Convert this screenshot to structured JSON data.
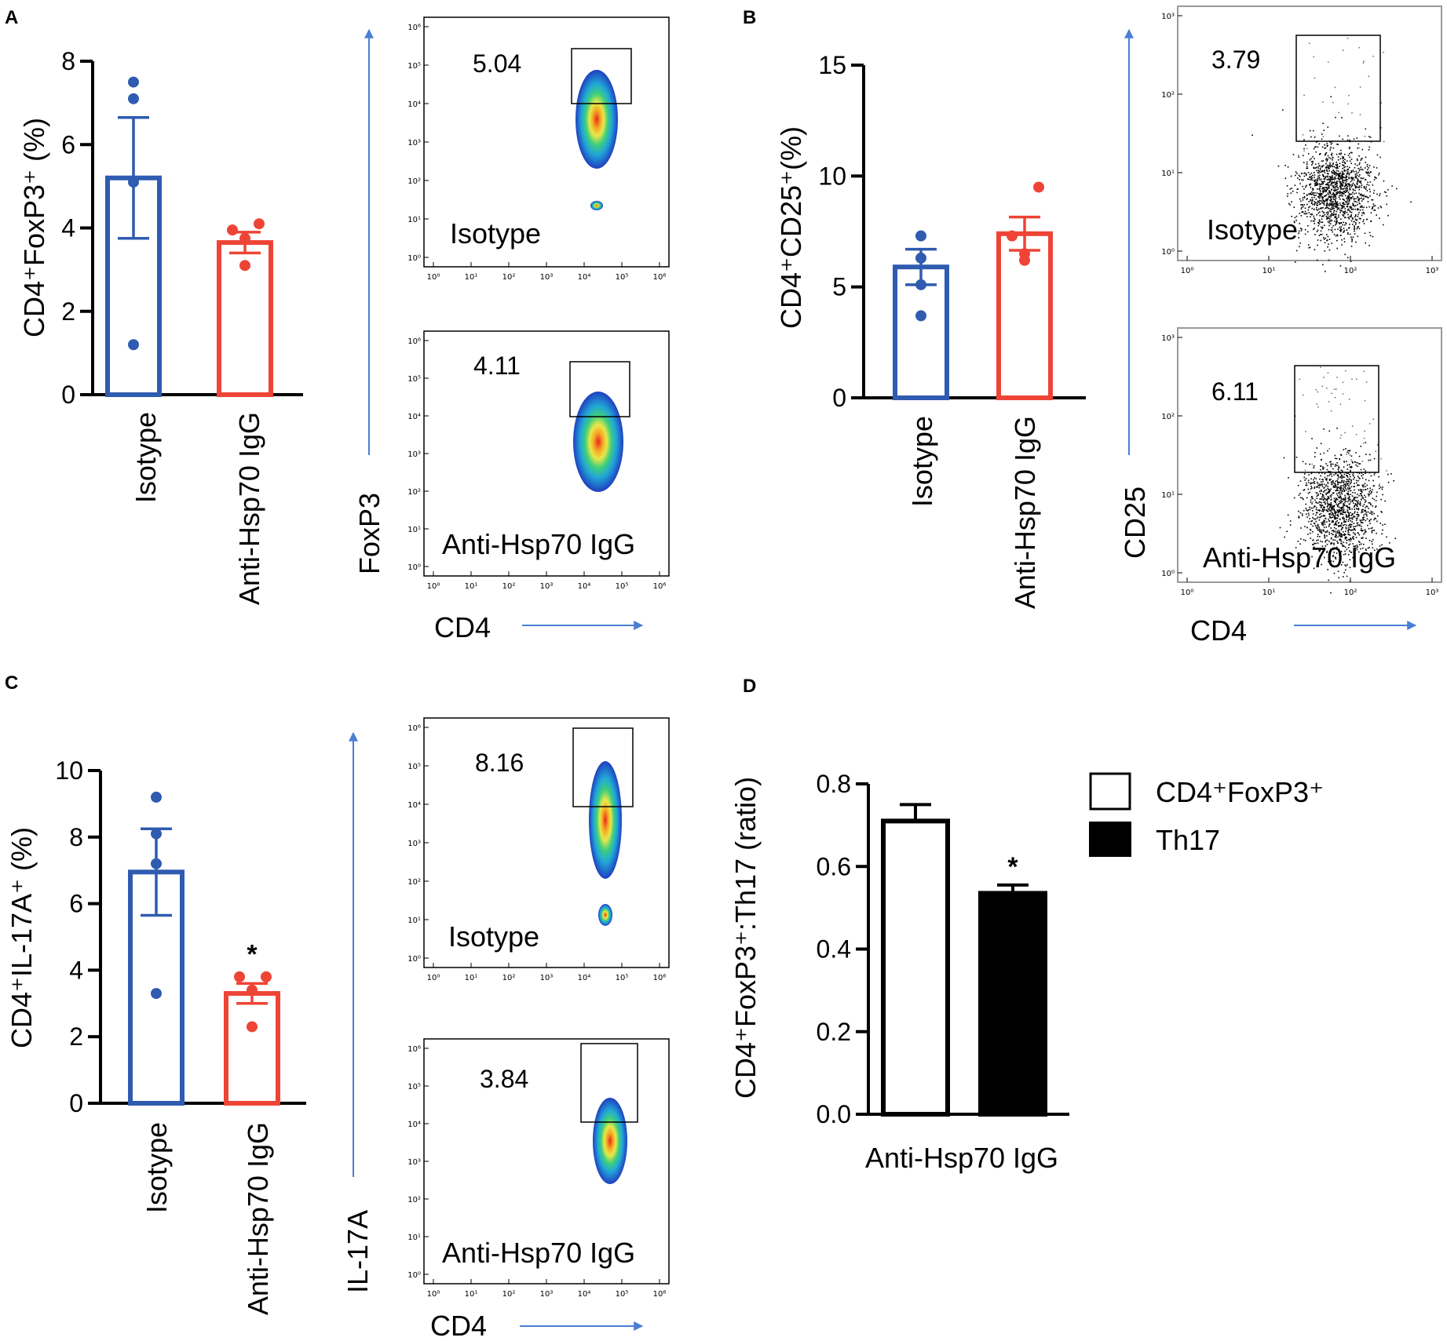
{
  "colors": {
    "isotype": "#2f5bb0",
    "anti": "#ee4436",
    "arrow": "#4a7fd4",
    "black": "#000000"
  },
  "flow_tick_labels": [
    "10⁰",
    "10¹",
    "10²",
    "10³",
    "10⁴",
    "10⁵",
    "10⁶"
  ],
  "flow_tick_labels_b": [
    "10⁰",
    "10¹",
    "10²",
    "10³"
  ],
  "chart_data": [
    {
      "panel": "A",
      "type": "bar",
      "ylabel": "CD4⁺FoxP3⁺ (%)",
      "ylim": [
        0,
        8
      ],
      "yticks": [
        "0",
        "2",
        "4",
        "6",
        "8"
      ],
      "categories": [
        "Isotype",
        "Anti-Hsp70 IgG"
      ],
      "values": [
        5.2,
        3.65
      ],
      "sem": [
        1.45,
        0.25
      ],
      "points": [
        [
          7.5,
          7.1,
          5.1,
          1.2
        ],
        [
          4.1,
          3.95,
          3.75,
          3.1
        ]
      ],
      "significance": [
        "",
        ""
      ],
      "flow": {
        "xlabel": "CD4",
        "ylabel": "FoxP3",
        "plots": [
          {
            "label": "Isotype",
            "gate_value": "5.04"
          },
          {
            "label": "Anti-Hsp70 IgG",
            "gate_value": "4.11"
          }
        ]
      }
    },
    {
      "panel": "B",
      "type": "bar",
      "ylabel": "CD4⁺CD25⁺(%)",
      "ylim": [
        0,
        15
      ],
      "yticks": [
        "0",
        "5",
        "10",
        "15"
      ],
      "categories": [
        "Isotype",
        "Anti-Hsp70 IgG"
      ],
      "values": [
        5.9,
        7.4
      ],
      "sem": [
        0.8,
        0.75
      ],
      "points": [
        [
          7.3,
          6.3,
          5.1,
          3.7
        ],
        [
          9.5,
          7.3,
          6.5,
          6.2
        ]
      ],
      "significance": [
        "",
        ""
      ],
      "flow": {
        "xlabel": "CD4",
        "ylabel": "CD25",
        "plots": [
          {
            "label": "Isotype",
            "gate_value": "3.79"
          },
          {
            "label": "Anti-Hsp70 IgG",
            "gate_value": "6.11"
          }
        ]
      }
    },
    {
      "panel": "C",
      "type": "bar",
      "ylabel": "CD4⁺IL-17A⁺ (%)",
      "ylim": [
        0,
        10
      ],
      "yticks": [
        "0",
        "2",
        "4",
        "6",
        "8",
        "10"
      ],
      "categories": [
        "Isotype",
        "Anti-Hsp70 IgG"
      ],
      "values": [
        6.95,
        3.3
      ],
      "sem": [
        1.3,
        0.3
      ],
      "points": [
        [
          9.2,
          8.1,
          7.2,
          3.3
        ],
        [
          3.8,
          3.8,
          3.4,
          2.3
        ]
      ],
      "significance": [
        "",
        "*"
      ],
      "flow": {
        "xlabel": "CD4",
        "ylabel": "IL-17A",
        "plots": [
          {
            "label": "Isotype",
            "gate_value": "8.16"
          },
          {
            "label": "Anti-Hsp70 IgG",
            "gate_value": "3.84"
          }
        ]
      }
    },
    {
      "panel": "D",
      "type": "bar",
      "ylabel": "CD4⁺FoxP3⁺:Th17 (ratio)",
      "ylim": [
        0,
        0.8
      ],
      "yticks": [
        "0.0",
        "0.2",
        "0.4",
        "0.6",
        "0.8"
      ],
      "xlabel": "Anti-Hsp70 IgG",
      "series": [
        {
          "name": "CD4⁺FoxP3⁺",
          "value": 0.71,
          "sem": 0.04,
          "fill": "#ffffff"
        },
        {
          "name": "Th17",
          "value": 0.535,
          "sem": 0.02,
          "fill": "#000000"
        }
      ],
      "significance": [
        "",
        "*"
      ]
    }
  ],
  "panel_labels": [
    "A",
    "B",
    "C",
    "D"
  ]
}
